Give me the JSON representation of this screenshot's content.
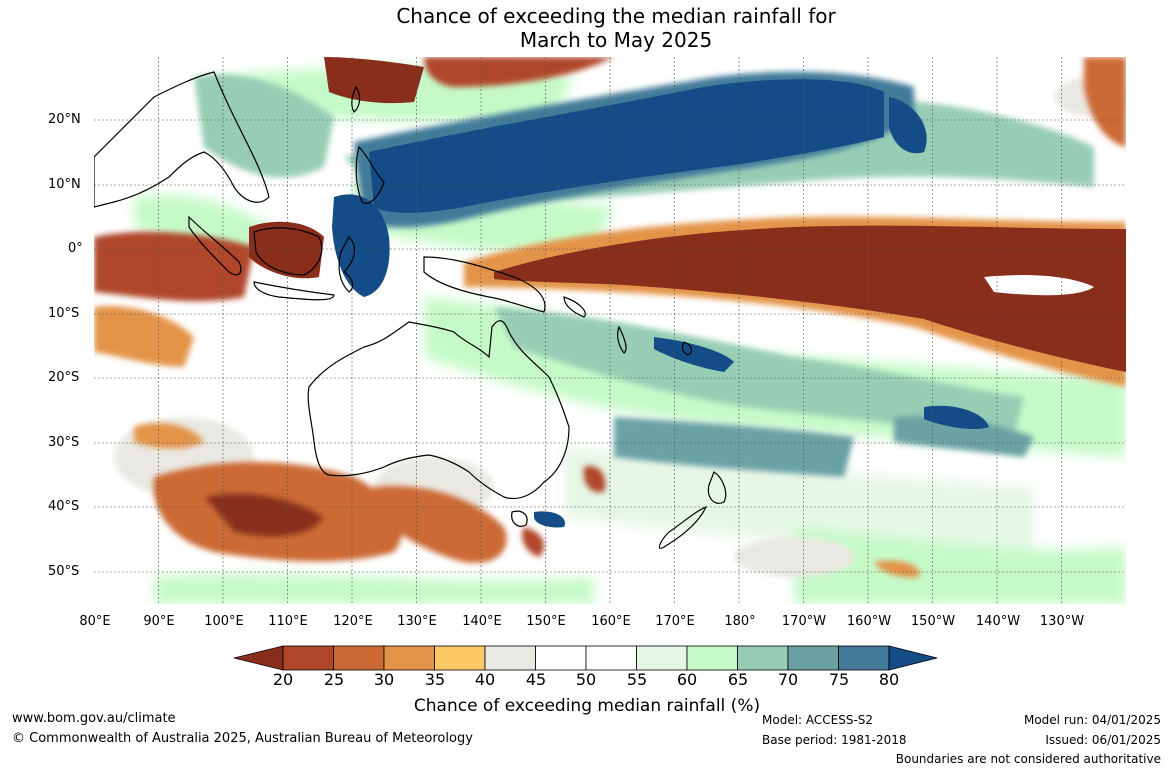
{
  "title_line1": "Chance of exceeding the median rainfall for",
  "title_line2": "March to May 2025",
  "lat_labels": [
    "20°N",
    "10°N",
    "0°",
    "10°S",
    "20°S",
    "30°S",
    "40°S",
    "50°S"
  ],
  "lon_labels": [
    "80°E",
    "90°E",
    "100°E",
    "110°E",
    "120°E",
    "130°E",
    "140°E",
    "150°E",
    "160°E",
    "170°E",
    "180°",
    "170°W",
    "160°W",
    "150°W",
    "140°W",
    "130°W"
  ],
  "colorbar": {
    "ticks": [
      "20",
      "25",
      "30",
      "35",
      "40",
      "45",
      "50",
      "55",
      "60",
      "65",
      "70",
      "75",
      "80"
    ],
    "colors": [
      "#8a2e1c",
      "#b0472a",
      "#cc6a35",
      "#e3944a",
      "#fdc965",
      "#eae8e2",
      "#ffffff",
      "#ffffff",
      "#e6f7e6",
      "#c5fac8",
      "#98cdb5",
      "#6aa2a4",
      "#437a9a",
      "#134c86"
    ],
    "label": "Chance of exceeding median rainfall (%)"
  },
  "footer": {
    "website": "www.bom.gov.au/climate",
    "copyright": "© Commonwealth of Australia 2025, Australian Bureau of Meteorology",
    "model": "Model: ACCESS-S2",
    "base_period": "Base period: 1981-2018",
    "model_run": "Model run: 04/01/2025",
    "issued": "Issued: 06/01/2025",
    "disclaimer": "Boundaries are not considered authoritative"
  }
}
